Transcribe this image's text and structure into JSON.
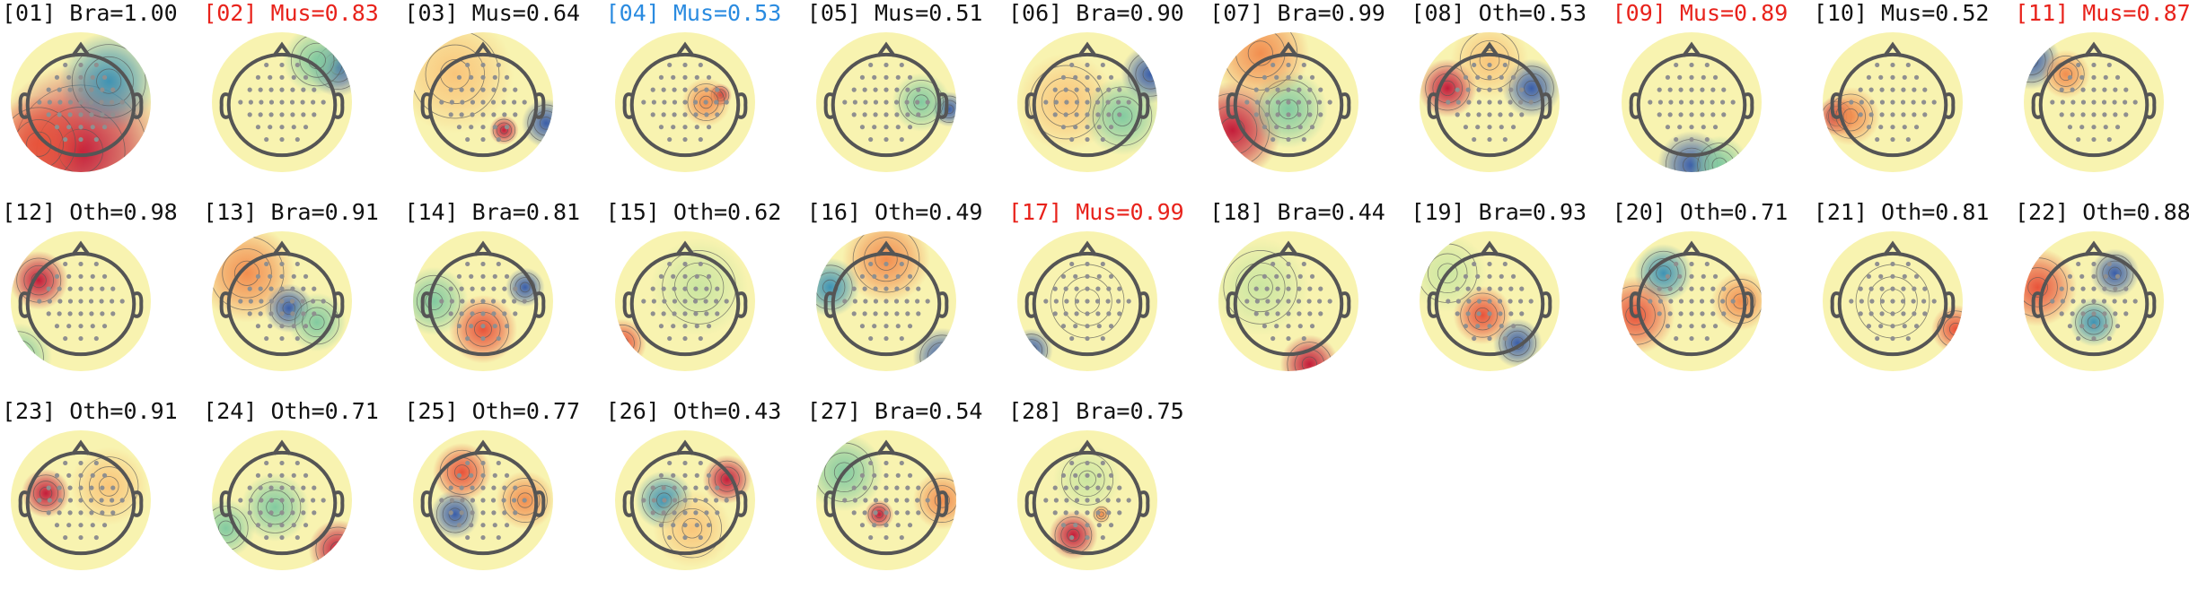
{
  "colors": {
    "normal": "#111111",
    "flag_red": "#e8221b",
    "flag_blue": "#2a8be0",
    "head_outline": "#555555",
    "sensor": "#8f8f8f"
  },
  "components": [
    {
      "label": "[01] Bra=1.00",
      "flag": "normal"
    },
    {
      "label": "[02] Mus=0.83",
      "flag": "red"
    },
    {
      "label": "[03] Mus=0.64",
      "flag": "normal"
    },
    {
      "label": "[04] Mus=0.53",
      "flag": "blue"
    },
    {
      "label": "[05] Mus=0.51",
      "flag": "normal"
    },
    {
      "label": "[06] Bra=0.90",
      "flag": "normal"
    },
    {
      "label": "[07] Bra=0.99",
      "flag": "normal"
    },
    {
      "label": "[08] Oth=0.53",
      "flag": "normal"
    },
    {
      "label": "[09] Mus=0.89",
      "flag": "red"
    },
    {
      "label": "[10] Mus=0.52",
      "flag": "normal"
    },
    {
      "label": "[11] Mus=0.87",
      "flag": "red"
    },
    {
      "label": "[12] Oth=0.98",
      "flag": "normal"
    },
    {
      "label": "[13] Bra=0.91",
      "flag": "normal"
    },
    {
      "label": "[14] Bra=0.81",
      "flag": "normal"
    },
    {
      "label": "[15] Oth=0.62",
      "flag": "normal"
    },
    {
      "label": "[16] Oth=0.49",
      "flag": "normal"
    },
    {
      "label": "[17] Mus=0.99",
      "flag": "red"
    },
    {
      "label": "[18] Bra=0.44",
      "flag": "normal"
    },
    {
      "label": "[19] Bra=0.93",
      "flag": "normal"
    },
    {
      "label": "[20] Oth=0.71",
      "flag": "normal"
    },
    {
      "label": "[21] Oth=0.81",
      "flag": "normal"
    },
    {
      "label": "[22] Oth=0.88",
      "flag": "normal"
    },
    {
      "label": "[23] Oth=0.91",
      "flag": "normal"
    },
    {
      "label": "[24] Oth=0.71",
      "flag": "normal"
    },
    {
      "label": "[25] Oth=0.77",
      "flag": "normal"
    },
    {
      "label": "[26] Oth=0.43",
      "flag": "normal"
    },
    {
      "label": "[27] Bra=0.54",
      "flag": "normal"
    },
    {
      "label": "[28] Bra=0.75",
      "flag": "normal"
    }
  ]
}
